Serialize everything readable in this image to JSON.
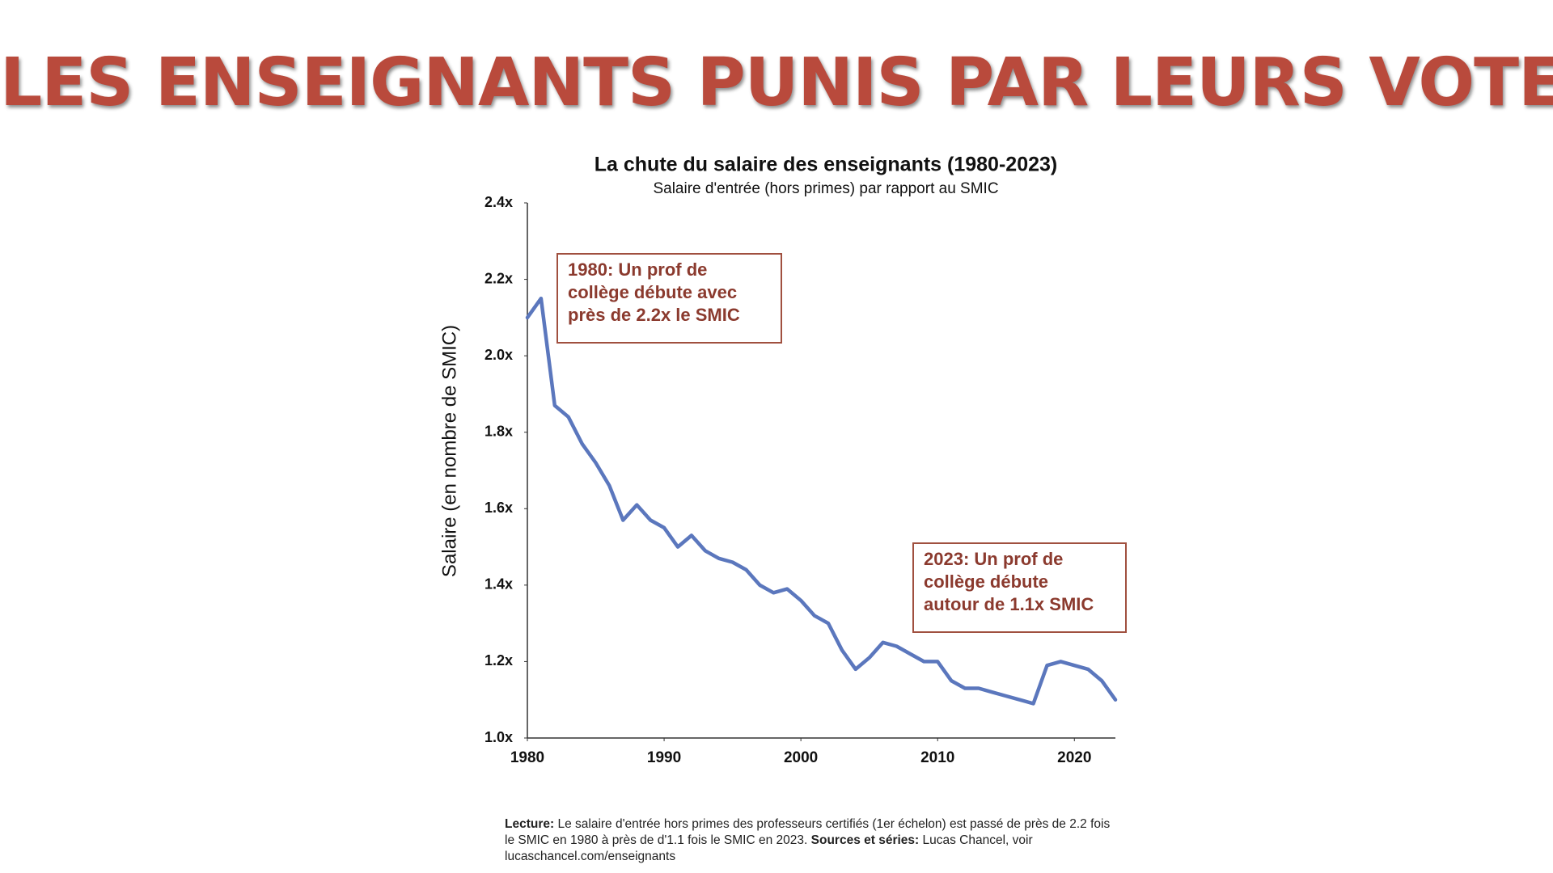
{
  "header": {
    "title": "LES ENSEIGNANTS PUNIS PAR LEURS VOTES"
  },
  "chart_data": {
    "type": "line",
    "title": "La chute du salaire des enseignants (1980-2023)",
    "subtitle": "Salaire d'entrée (hors primes) par rapport au SMIC",
    "y_label": "Salaire (en nombre de SMIC)",
    "x": [
      1980,
      1981,
      1982,
      1983,
      1984,
      1985,
      1986,
      1987,
      1988,
      1989,
      1990,
      1991,
      1992,
      1993,
      1994,
      1995,
      1996,
      1997,
      1998,
      1999,
      2000,
      2001,
      2002,
      2003,
      2004,
      2005,
      2006,
      2007,
      2008,
      2009,
      2010,
      2011,
      2012,
      2013,
      2014,
      2015,
      2016,
      2017,
      2018,
      2019,
      2020,
      2021,
      2022,
      2023
    ],
    "series": [
      {
        "color": "#5b77bd",
        "values": [
          2.1,
          2.15,
          1.87,
          1.84,
          1.77,
          1.72,
          1.66,
          1.57,
          1.61,
          1.57,
          1.55,
          1.5,
          1.53,
          1.49,
          1.47,
          1.46,
          1.44,
          1.4,
          1.38,
          1.39,
          1.36,
          1.32,
          1.3,
          1.23,
          1.18,
          1.21,
          1.25,
          1.24,
          1.22,
          1.2,
          1.2,
          1.15,
          1.13,
          1.13,
          1.12,
          1.11,
          1.1,
          1.09,
          1.19,
          1.2,
          1.19,
          1.18,
          1.15,
          1.1
        ]
      }
    ],
    "xlim": [
      1980,
      2023
    ],
    "ylim": [
      1.0,
      2.4
    ],
    "xticks": [
      1980,
      1990,
      2000,
      2010,
      2020
    ],
    "yticks": [
      {
        "value": 1.0,
        "label": "1.0x"
      },
      {
        "value": 1.2,
        "label": "1.2x"
      },
      {
        "value": 1.4,
        "label": "1.4x"
      },
      {
        "value": 1.6,
        "label": "1.6x"
      },
      {
        "value": 1.8,
        "label": "1.8x"
      },
      {
        "value": 2.0,
        "label": "2.0x"
      },
      {
        "value": 2.2,
        "label": "2.2x"
      },
      {
        "value": 2.4,
        "label": "2.4x"
      }
    ],
    "annotations": [
      {
        "lines": [
          "1980: Un prof de",
          "collège débute avec",
          "près de 2.2x le SMIC"
        ]
      },
      {
        "lines": [
          "2023: Un prof de",
          "collège débute",
          "autour de 1.1x SMIC"
        ]
      }
    ],
    "note": {
      "label": "Lecture:",
      "text": "Le salaire d'entrée hors primes des professeurs certifiés (1er échelon) est passé de près de 2.2 fois le SMIC en 1980 à près de d'1.1 fois le SMIC en 2023.",
      "sources_label": "Sources et séries:",
      "sources_text": "Lucas Chancel, voir lucaschancel.com/enseignants"
    }
  }
}
